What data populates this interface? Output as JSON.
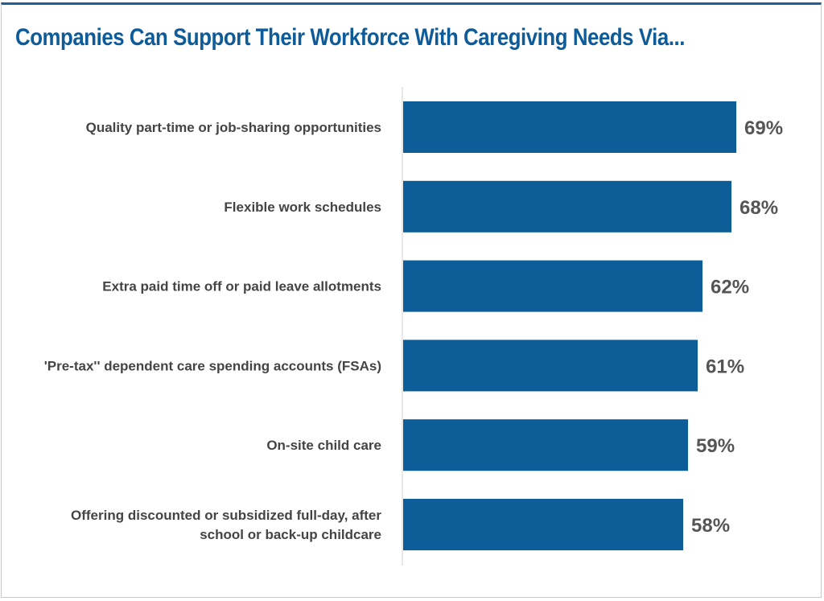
{
  "chart_data": {
    "type": "bar",
    "orientation": "horizontal",
    "title": "Companies Can Support Their Workforce With Caregiving Needs Via...",
    "categories": [
      [
        "Quality part-time or job-sharing opportunities"
      ],
      [
        "Flexible work schedules"
      ],
      [
        "Extra paid time off or paid leave allotments"
      ],
      [
        "'Pre-tax'' dependent care spending accounts (FSAs)"
      ],
      [
        "On-site child care"
      ],
      [
        "Offering discounted or subsidized full-day, after",
        "school or back-up childcare"
      ]
    ],
    "values": [
      69,
      68,
      62,
      61,
      59,
      58
    ],
    "value_labels": [
      "69%",
      "68%",
      "62%",
      "61%",
      "59%",
      "58%"
    ],
    "unit": "%",
    "xlim": [
      0,
      100
    ],
    "grid": false,
    "colors": {
      "bar": "#0d5d98",
      "title": "#0e5b99",
      "top_rule": "#1f5f95",
      "axis": "#d0d0d0"
    }
  }
}
